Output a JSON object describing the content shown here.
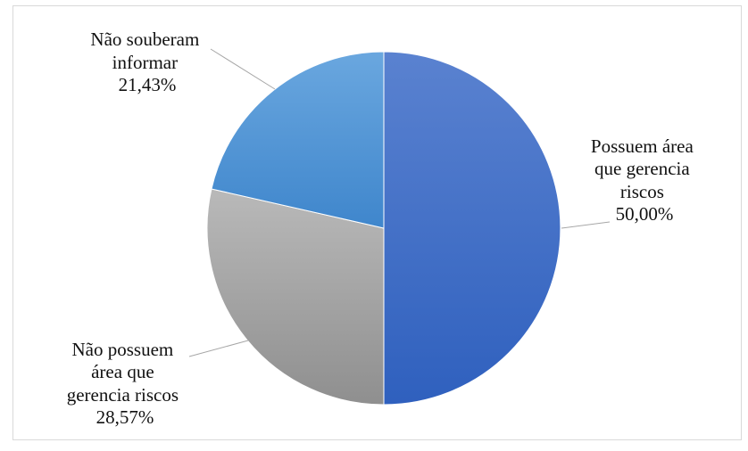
{
  "chart_data": {
    "type": "pie",
    "slices": [
      {
        "label": "Possuem área que gerencia riscos",
        "value": 50.0,
        "display": "50,00%",
        "color": "#3d6cc6"
      },
      {
        "label": "Não possuem área que gerencia riscos",
        "value": 28.57,
        "display": "28,57%",
        "color": "#a2a2a2"
      },
      {
        "label": "Não souberam informar",
        "value": 21.43,
        "display": "21,43%",
        "color": "#4b8fd2"
      }
    ],
    "legend": "none",
    "start_angle": "12 o'clock",
    "direction": "clockwise"
  },
  "labels": {
    "slice_0": {
      "lines": [
        "Possuem área",
        "que gerencia",
        "riscos"
      ],
      "pct": "50,00%"
    },
    "slice_1": {
      "lines": [
        "Não possuem",
        "área que",
        "gerencia riscos"
      ],
      "pct": "28,57%"
    },
    "slice_2": {
      "lines": [
        "Não souberam",
        "informar"
      ],
      "pct": "21,43%"
    }
  }
}
